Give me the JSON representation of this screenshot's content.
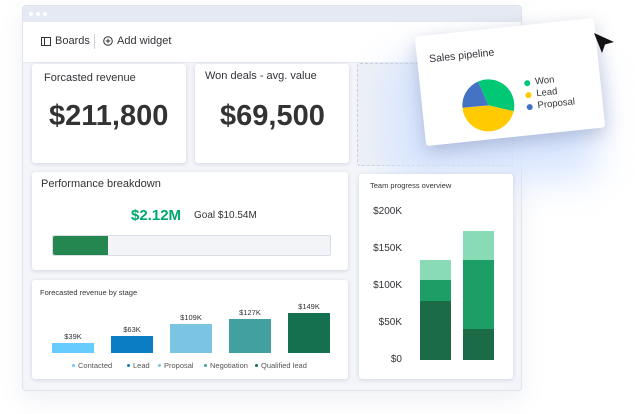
{
  "toolbar": {
    "boards_label": "Boards",
    "add_widget_label": "Add widget"
  },
  "cards": {
    "forecasted_revenue": {
      "title": "Forcasted revenue",
      "value": "$211,800"
    },
    "won_deals": {
      "title": "Won deals - avg. value",
      "value": "$69,500"
    }
  },
  "performance": {
    "title": "Performance breakdown",
    "value": "$2.12M",
    "goal": "Goal $10.54M",
    "progress_fraction": 0.2,
    "colors": {
      "value": "#00a86b",
      "fill": "#258750"
    }
  },
  "stage_chart": {
    "title": "Forecasted revenue by stage",
    "chart_data": {
      "type": "bar",
      "categories": [
        "Contacted",
        "Lead",
        "Proposal",
        "Negotiation",
        "Qualified lead"
      ],
      "values": [
        39,
        63,
        109,
        127,
        149
      ],
      "data_labels": [
        "$39K",
        "$63K",
        "$109K",
        "$127K",
        "$149K"
      ],
      "colors": [
        "#66ccff",
        "#0b7dc4",
        "#7cc4e3",
        "#43a0a0",
        "#157050"
      ],
      "legend_position": "bottom"
    }
  },
  "team_chart": {
    "title": "Team progress overview",
    "chart_data": {
      "type": "bar",
      "stacked": true,
      "categories": [
        "",
        ""
      ],
      "y_tick_labels": [
        "$200K",
        "$150K",
        "$100K",
        "$50K",
        "$0"
      ],
      "ylim": [
        0,
        200000
      ],
      "series": [
        {
          "values": [
            80000,
            42000
          ],
          "color": "#1c6b47"
        },
        {
          "values": [
            28000,
            93000
          ],
          "color": "#1d9e66"
        },
        {
          "values": [
            27000,
            40000
          ],
          "color": "#88dbb4"
        }
      ]
    }
  },
  "sales_pipeline": {
    "title": "Sales pipeline",
    "chart_data": {
      "type": "pie",
      "labels": [
        "Won",
        "Lead",
        "Proposal"
      ],
      "values": [
        35,
        45,
        20
      ],
      "colors": [
        "#00c875",
        "#ffcb00",
        "#4573c4"
      ]
    }
  }
}
